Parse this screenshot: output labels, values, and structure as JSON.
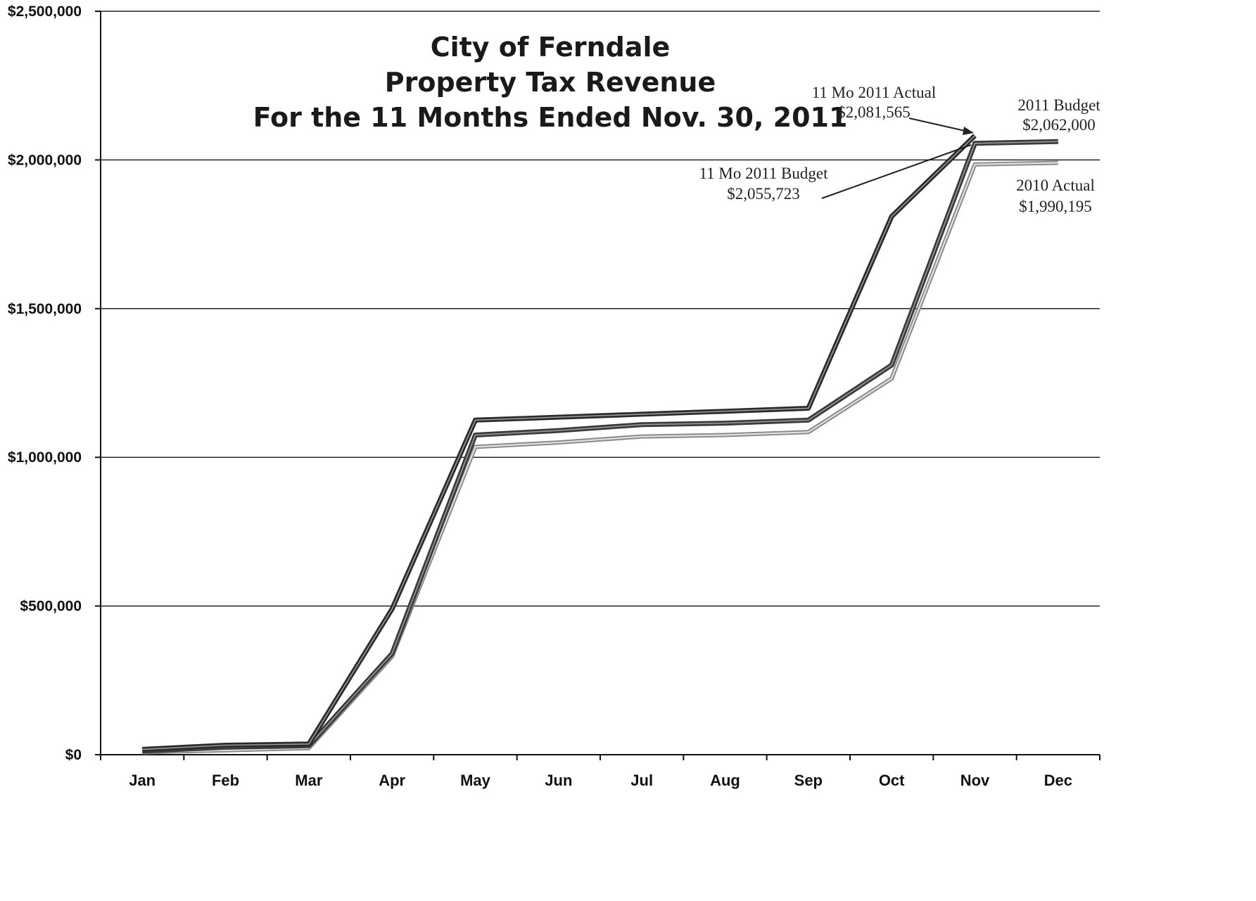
{
  "chart_data": {
    "type": "line",
    "title": [
      "City of Ferndale",
      "Property Tax Revenue",
      "For the 11 Months Ended Nov. 30, 2011"
    ],
    "xlabel": "",
    "ylabel": "",
    "categories": [
      "Jan",
      "Feb",
      "Mar",
      "Apr",
      "May",
      "Jun",
      "Jul",
      "Aug",
      "Sep",
      "Oct",
      "Nov",
      "Dec"
    ],
    "y_ticks": [
      "$0",
      "$500,000",
      "$1,000,000",
      "$1,500,000",
      "$2,000,000",
      "$2,500,000"
    ],
    "ylim": [
      0,
      2500000
    ],
    "grid": "horizontal",
    "series": [
      {
        "key": "actual_2011",
        "color": "#2a2a2a",
        "style": "double-dark",
        "values": [
          18000,
          32000,
          36000,
          490000,
          1125000,
          1135000,
          1145000,
          1155000,
          1165000,
          1810000,
          2081565,
          null
        ]
      },
      {
        "key": "budget_2011",
        "color": "#3a3a3a",
        "style": "double-dark",
        "values": [
          12000,
          25000,
          30000,
          340000,
          1075000,
          1090000,
          1110000,
          1115000,
          1125000,
          1310000,
          2055723,
          2062000
        ]
      },
      {
        "key": "actual_2010",
        "color": "#8a8a8a",
        "style": "double-light",
        "values": [
          8000,
          15000,
          22000,
          330000,
          1035000,
          1050000,
          1070000,
          1075000,
          1085000,
          1265000,
          1985000,
          1990195
        ]
      }
    ],
    "annotations": [
      {
        "lines": [
          "11 Mo 2011 Actual",
          "$2,081,565"
        ]
      },
      {
        "lines": [
          "2011 Budget",
          "$2,062,000"
        ]
      },
      {
        "lines": [
          "11 Mo 2011 Budget",
          "$2,055,723"
        ]
      },
      {
        "lines": [
          "2010 Actual",
          "$1,990,195"
        ]
      }
    ]
  }
}
